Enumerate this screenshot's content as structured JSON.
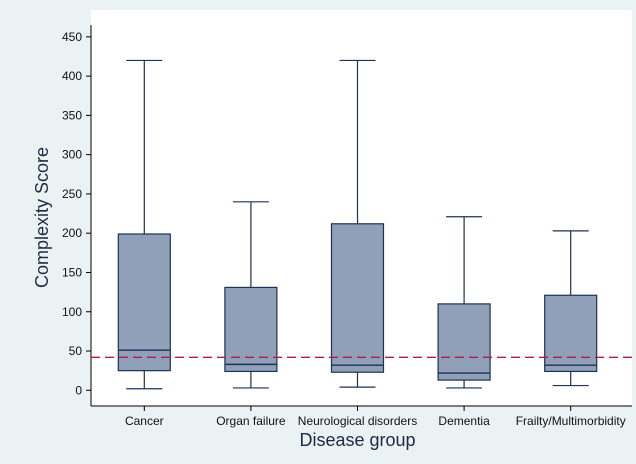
{
  "chart_data": {
    "type": "box",
    "title": "",
    "xlabel": "Disease group",
    "ylabel": "Complexity Score",
    "ylim": [
      -20,
      460
    ],
    "yticks": [
      0,
      50,
      100,
      150,
      200,
      250,
      300,
      350,
      400,
      450
    ],
    "grid": false,
    "categories": [
      "Cancer",
      "Organ failure",
      "Neurological disorders",
      "Dementia",
      "Frailty/Multimorbidity"
    ],
    "boxes": [
      {
        "category": "Cancer",
        "min": 2,
        "q1": 25,
        "median": 51,
        "q3": 199,
        "max": 420
      },
      {
        "category": "Organ failure",
        "min": 3,
        "q1": 24,
        "median": 33,
        "q3": 131,
        "max": 240
      },
      {
        "category": "Neurological disorders",
        "min": 4,
        "q1": 23,
        "median": 32,
        "q3": 212,
        "max": 420
      },
      {
        "category": "Dementia",
        "min": 3,
        "q1": 13,
        "median": 22,
        "q3": 110,
        "max": 221
      },
      {
        "category": "Frailty/Multimorbidity",
        "min": 6,
        "q1": 24,
        "median": 32,
        "q3": 121,
        "max": 203
      }
    ],
    "reference_line": {
      "value": 42,
      "style": "dashed"
    },
    "colors": {
      "box_fill": "#8fa0b8",
      "box_stroke": "#1e3156",
      "reference_line": "#b21e3f",
      "plot_background": "#ffffff",
      "outer_background": "#eaf2f3",
      "axis_title": "#1e2a44"
    }
  }
}
